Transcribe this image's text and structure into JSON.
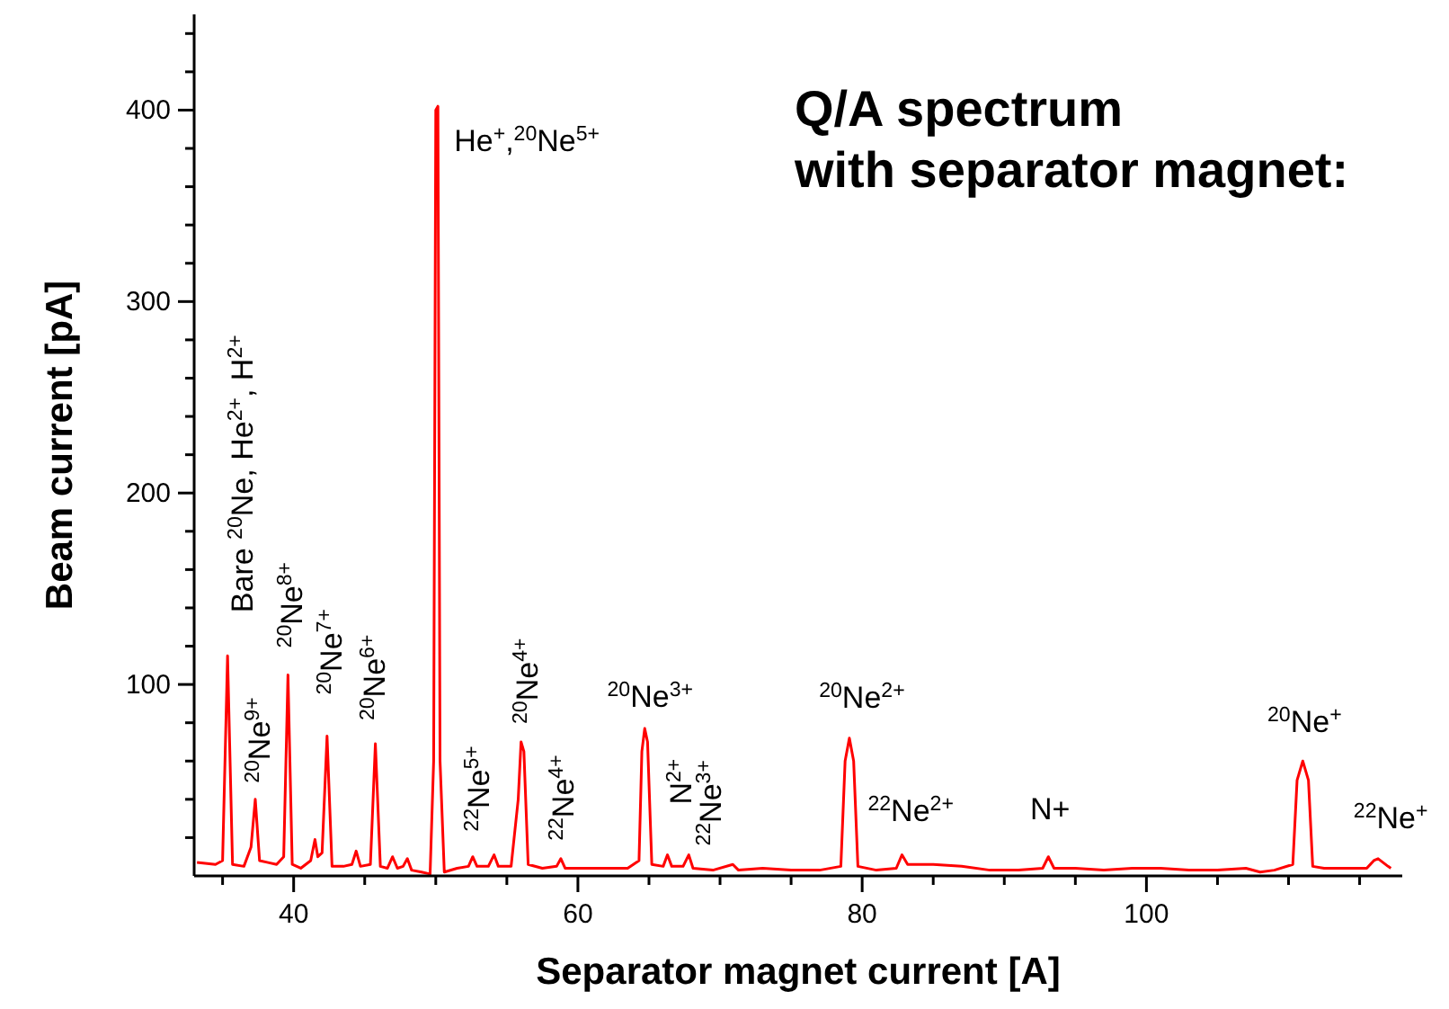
{
  "chart_data": {
    "type": "line",
    "title": "Q/A spectrum\nwith separator magnet:",
    "xlabel": "Separator magnet current [A]",
    "ylabel": "Beam current [pA]",
    "xlim": [
      33,
      118
    ],
    "ylim": [
      0,
      450
    ],
    "xticks": [
      {
        "value": 35,
        "label": null
      },
      40,
      {
        "value": 45,
        "label": null
      },
      60,
      {
        "value": 50,
        "label": null
      },
      {
        "value": 55,
        "label": null
      },
      {
        "value": 65,
        "label": null
      },
      {
        "value": 70,
        "label": null
      },
      {
        "value": 75,
        "label": null
      },
      80,
      {
        "value": 85,
        "label": null
      },
      {
        "value": 90,
        "label": null
      },
      {
        "value": 95,
        "label": null
      },
      100,
      {
        "value": 105,
        "label": null
      },
      {
        "value": 110,
        "label": null
      },
      {
        "value": 115,
        "label": null
      }
    ],
    "yticks": [
      {
        "value": 20,
        "label": null
      },
      {
        "value": 40,
        "label": null
      },
      {
        "value": 60,
        "label": null
      },
      {
        "value": 80,
        "label": null
      },
      100,
      {
        "value": 120,
        "label": null
      },
      {
        "value": 140,
        "label": null
      },
      {
        "value": 160,
        "label": null
      },
      {
        "value": 180,
        "label": null
      },
      200,
      {
        "value": 220,
        "label": null
      },
      {
        "value": 240,
        "label": null
      },
      {
        "value": 260,
        "label": null
      },
      {
        "value": 280,
        "label": null
      },
      300,
      {
        "value": 320,
        "label": null
      },
      {
        "value": 340,
        "label": null
      },
      {
        "value": 360,
        "label": null
      },
      {
        "value": 380,
        "label": null
      },
      400,
      {
        "value": 420,
        "label": null
      },
      {
        "value": 440,
        "label": null
      }
    ],
    "series": [
      {
        "color": "#ff0000",
        "x": [
          33.2,
          34.5,
          35.0,
          35.35,
          35.7,
          36.5,
          37.0,
          37.3,
          37.6,
          38.2,
          38.8,
          39.3,
          39.6,
          39.9,
          40.5,
          41.2,
          41.5,
          41.7,
          42.0,
          42.35,
          42.7,
          43.5,
          44.1,
          44.4,
          44.7,
          45.4,
          45.75,
          46.1,
          46.6,
          46.96,
          47.3,
          47.7,
          48.0,
          48.3,
          49.0,
          49.6,
          49.85,
          50.0,
          50.15,
          50.3,
          50.6,
          51.5,
          52.3,
          52.6,
          52.9,
          53.7,
          54.1,
          54.4,
          55.3,
          55.8,
          56.0,
          56.2,
          56.5,
          57.5,
          58.5,
          58.8,
          59.1,
          60.5,
          62,
          63.5,
          64.3,
          64.5,
          64.7,
          64.9,
          65.2,
          66.0,
          66.3,
          66.6,
          67.4,
          67.8,
          68.1,
          69.5,
          70.9,
          71.3,
          73,
          75,
          77,
          78.5,
          78.8,
          79.1,
          79.4,
          79.7,
          81,
          82.4,
          82.8,
          83.2,
          85,
          87,
          89,
          91,
          92.7,
          93.1,
          93.5,
          95,
          97,
          99,
          101,
          103,
          105,
          107,
          108,
          109,
          110.3,
          110.6,
          111.0,
          111.4,
          111.7,
          112.5,
          114,
          115.5,
          116.0,
          116.3,
          117.0,
          117.2
        ],
        "values": [
          7,
          6,
          8,
          115,
          6,
          5,
          15,
          40,
          8,
          7,
          6,
          10,
          105,
          6,
          4,
          8,
          19,
          10,
          12,
          73,
          5,
          5,
          6,
          13,
          5,
          6,
          69,
          5,
          4,
          10,
          4,
          5,
          9,
          3,
          2,
          1,
          60,
          400,
          402,
          60,
          2,
          4,
          5,
          10,
          5,
          5,
          11,
          5,
          5,
          40,
          70,
          65,
          6,
          4,
          5,
          9,
          4,
          4,
          4,
          4,
          8,
          65,
          77,
          70,
          6,
          5,
          11,
          5,
          5,
          11,
          4,
          3,
          6,
          3,
          4,
          3,
          3,
          5,
          60,
          72,
          60,
          5,
          3,
          4,
          11,
          6,
          6,
          5,
          3,
          3,
          4,
          10,
          4,
          4,
          3,
          4,
          4,
          3,
          3,
          4,
          2,
          3,
          6,
          50,
          60,
          50,
          5,
          4,
          4,
          4,
          8,
          9,
          5,
          4
        ]
      }
    ],
    "annotations": [
      {
        "text": "Bare $^{20}$Ne, He$^{2+}$, H$^{2+}$",
        "x": 35.35,
        "y": 115
      },
      {
        "text": "$^{20}$Ne$^{9+}$",
        "x": 37.3,
        "y": 40
      },
      {
        "text": "$^{20}$Ne$^{8+}$",
        "x": 39.6,
        "y": 105
      },
      {
        "text": "$^{20}$Ne$^{7+}$",
        "x": 42.35,
        "y": 73
      },
      {
        "text": "$^{20}$Ne$^{6+}$",
        "x": 45.75,
        "y": 69
      },
      {
        "text": "He$^{+}$,$^{20}$Ne$^{5+}$",
        "x": 50.15,
        "y": 402
      },
      {
        "text": "$^{22}$Ne$^{5+}$",
        "x": 52.6,
        "y": 10
      },
      {
        "text": "$^{20}$Ne$^{4+}$",
        "x": 56.0,
        "y": 70
      },
      {
        "text": "$^{22}$Ne$^{4+}$",
        "x": 58.8,
        "y": 9
      },
      {
        "text": "$^{20}$Ne$^{3+}$",
        "x": 64.7,
        "y": 77
      },
      {
        "text": "N$^{2+}$",
        "x": 66.3,
        "y": 11
      },
      {
        "text": "$^{22}$Ne$^{3+}$",
        "x": 67.8,
        "y": 11
      },
      {
        "text": "$^{20}$Ne$^{2+}$",
        "x": 79.1,
        "y": 72
      },
      {
        "text": "$^{22}$Ne$^{2+}$",
        "x": 82.8,
        "y": 11
      },
      {
        "text": "N+",
        "x": 93.1,
        "y": 10
      },
      {
        "text": "$^{20}$Ne$^{+}$",
        "x": 111.0,
        "y": 60
      },
      {
        "text": "$^{22}$Ne$^{+}$",
        "x": 116.3,
        "y": 9
      }
    ]
  }
}
